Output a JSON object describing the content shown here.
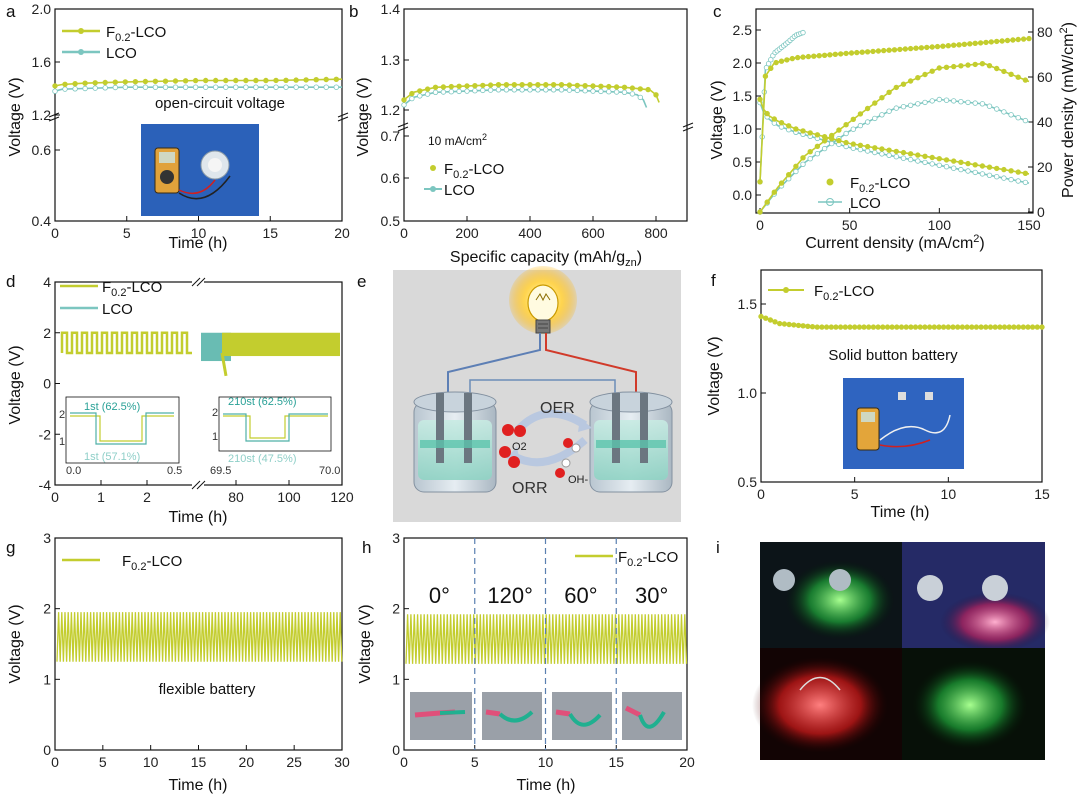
{
  "colors": {
    "f02": "#c3cd2e",
    "lco": "#7cc6c0",
    "lco_inset": "#4fb0a6",
    "axis": "#111111",
    "dash": "#5a7fb0"
  },
  "panel_labels": [
    "a",
    "b",
    "c",
    "d",
    "e",
    "f",
    "g",
    "h",
    "i"
  ],
  "legend_f02": "F0.2-LCO",
  "legend_lco": "LCO",
  "chart_data": [
    {
      "id": "a",
      "type": "line",
      "xlabel": "Time (h)",
      "ylabel": "Voltage (V)",
      "xlim": [
        0,
        20
      ],
      "xticks": [
        "0",
        "5",
        "10",
        "15",
        "20"
      ],
      "ylim_upper": [
        1.2,
        2.0
      ],
      "yticks_upper": [
        "1.2",
        "1.6",
        "2.0"
      ],
      "ylim_lower": [
        0.4,
        0.8
      ],
      "yticks_lower": [
        "0.4",
        "0.6"
      ],
      "annotation": "open-circuit voltage",
      "series": [
        {
          "name": "F0.2-LCO",
          "x": [
            0,
            0.5,
            2,
            5,
            10,
            15,
            20
          ],
          "y": [
            1.42,
            1.43,
            1.44,
            1.45,
            1.46,
            1.46,
            1.47
          ]
        },
        {
          "name": "LCO",
          "x": [
            0,
            0.5,
            2,
            5,
            10,
            15,
            20
          ],
          "y": [
            1.38,
            1.395,
            1.4,
            1.41,
            1.41,
            1.41,
            1.41
          ]
        }
      ]
    },
    {
      "id": "b",
      "type": "line",
      "xlabel": "Specific capacity (mAh/g",
      "xlabel_sub": "zn",
      "xlabel_end": ")",
      "ylabel": "Voltage (V)",
      "xlim": [
        0,
        900
      ],
      "xticks": [
        "0",
        "200",
        "400",
        "600",
        "800"
      ],
      "ylim_upper": [
        1.2,
        1.4
      ],
      "yticks_upper": [
        "1.2",
        "1.3",
        "1.4"
      ],
      "ylim_lower": [
        0.5,
        0.75
      ],
      "yticks_lower": [
        "0.5",
        "0.6",
        "0.7"
      ],
      "annotation": "10 mA/cm",
      "annotation_sup": "2",
      "series": [
        {
          "name": "F0.2-LCO",
          "x": [
            0,
            30,
            100,
            300,
            500,
            700,
            780,
            800,
            810
          ],
          "y": [
            1.22,
            1.235,
            1.245,
            1.25,
            1.25,
            1.245,
            1.24,
            1.23,
            1.215
          ]
        },
        {
          "name": "LCO",
          "x": [
            0,
            30,
            100,
            300,
            500,
            700,
            740,
            760,
            770
          ],
          "y": [
            1.21,
            1.225,
            1.235,
            1.24,
            1.24,
            1.235,
            1.23,
            1.22,
            1.205
          ]
        }
      ]
    },
    {
      "id": "c",
      "type": "line",
      "xlabel": "Current density (mA/cm",
      "xlabel_sup": "2",
      "xlabel_end": ")",
      "ylabel": "Voltage (V)",
      "ylabel_right": "Power density (mW/cm",
      "ylabel_right_sup": "2",
      "ylabel_right_end": ")",
      "xlim": [
        0,
        150
      ],
      "xticks": [
        "0",
        "50",
        "100",
        "150"
      ],
      "ylim": [
        -0.3,
        2.7
      ],
      "yticks": [
        "0.0",
        "0.5",
        "1.0",
        "1.5",
        "2.0",
        "2.5"
      ],
      "ylim_right": [
        0,
        85
      ],
      "yticks_right": [
        "0",
        "20",
        "40",
        "60",
        "80"
      ],
      "series": [
        {
          "name": "F0.2-LCO voltage",
          "x": [
            0,
            2,
            5,
            10,
            20,
            50,
            100,
            150
          ],
          "y": [
            1.45,
            1.3,
            1.2,
            1.12,
            1.0,
            0.78,
            0.55,
            0.32
          ]
        },
        {
          "name": "LCO voltage",
          "x": [
            0,
            2,
            5,
            10,
            20,
            50,
            100,
            150
          ],
          "y": [
            1.4,
            1.25,
            1.15,
            1.05,
            0.95,
            0.72,
            0.45,
            0.18
          ]
        },
        {
          "name": "F0.2-LCO power",
          "x": [
            0,
            10,
            25,
            50,
            75,
            100,
            125,
            150
          ],
          "y": [
            0,
            11,
            25,
            40,
            55,
            64,
            66,
            58
          ]
        },
        {
          "name": "LCO power",
          "x": [
            0,
            10,
            25,
            50,
            75,
            100,
            125,
            150
          ],
          "y": [
            0,
            10,
            22,
            36,
            46,
            50,
            48,
            40
          ]
        },
        {
          "name": "F0.2-LCO charge",
          "x": [
            0,
            3,
            8,
            20,
            50,
            100,
            150
          ],
          "y": [
            0.2,
            1.8,
            2.0,
            2.08,
            2.15,
            2.25,
            2.37
          ]
        },
        {
          "name": "LCO charge",
          "x": [
            0,
            3,
            8,
            15,
            20,
            25
          ],
          "y": [
            0.2,
            1.9,
            2.15,
            2.3,
            2.42,
            2.47
          ]
        }
      ]
    },
    {
      "id": "d",
      "type": "line",
      "xlabel": "Time (h)",
      "ylabel": "Voltage (V)",
      "xticks_left": [
        "0",
        "1",
        "2"
      ],
      "xticks_right": [
        "80",
        "100",
        "120"
      ],
      "ylim": [
        -4,
        4
      ],
      "yticks": [
        "-4",
        "-2",
        "0",
        "2",
        "4"
      ],
      "insets": [
        {
          "labels": [
            "1st (62.5%)",
            "1st (57.1%)"
          ],
          "x_min": "0.0",
          "x_max": "0.5",
          "y_ticks": [
            "1",
            "2"
          ]
        },
        {
          "labels": [
            "210st (62.5%)",
            "210st (47.5%)"
          ],
          "x_min": "69.5",
          "x_max": "70.0",
          "y_ticks": [
            "1",
            "2"
          ]
        }
      ],
      "series": [
        {
          "name": "F0.2-LCO",
          "discharge_v": 1.2,
          "charge_v": 2.0
        },
        {
          "name": "LCO",
          "discharge_v": 1.2,
          "charge_v": 2.0
        }
      ]
    },
    {
      "id": "f",
      "type": "line",
      "xlabel": "Time (h)",
      "ylabel": "Voltage (V)",
      "xlim": [
        0,
        15
      ],
      "xticks": [
        "0",
        "5",
        "10",
        "15"
      ],
      "ylim": [
        0.5,
        1.7
      ],
      "yticks": [
        "0.5",
        "1.0",
        "1.5"
      ],
      "annotation": "Solid button battery",
      "series": [
        {
          "name": "F0.2-LCO",
          "x": [
            0,
            0.5,
            1,
            2,
            3,
            5,
            8,
            10,
            12,
            15
          ],
          "y": [
            1.43,
            1.41,
            1.39,
            1.38,
            1.37,
            1.37,
            1.37,
            1.37,
            1.37,
            1.37
          ]
        }
      ]
    },
    {
      "id": "g",
      "type": "line",
      "xlabel": "Time (h)",
      "ylabel": "Voltage (V)",
      "xlim": [
        0,
        30
      ],
      "xticks": [
        "0",
        "5",
        "10",
        "15",
        "20",
        "25",
        "30"
      ],
      "ylim": [
        0,
        3
      ],
      "yticks": [
        "0",
        "1",
        "2",
        "3"
      ],
      "annotation": "flexible battery",
      "series": [
        {
          "name": "F0.2-LCO",
          "charge_v": 1.95,
          "discharge_v": 1.25
        }
      ]
    },
    {
      "id": "h",
      "type": "line",
      "xlabel": "Time (h)",
      "ylabel": "Voltage (V)",
      "xlim": [
        0,
        20
      ],
      "xticks": [
        "0",
        "5",
        "10",
        "15",
        "20"
      ],
      "ylim": [
        0,
        3
      ],
      "yticks": [
        "0",
        "1",
        "2",
        "3"
      ],
      "angles": [
        "0°",
        "120°",
        "60°",
        "30°"
      ],
      "dividers": [
        5,
        10,
        15
      ],
      "series": [
        {
          "name": "F0.2-LCO",
          "charge_v": 1.92,
          "discharge_v": 1.22
        }
      ]
    }
  ],
  "schematic_e": {
    "labels": [
      "OER",
      "ORR",
      "O2",
      "OH-"
    ]
  }
}
